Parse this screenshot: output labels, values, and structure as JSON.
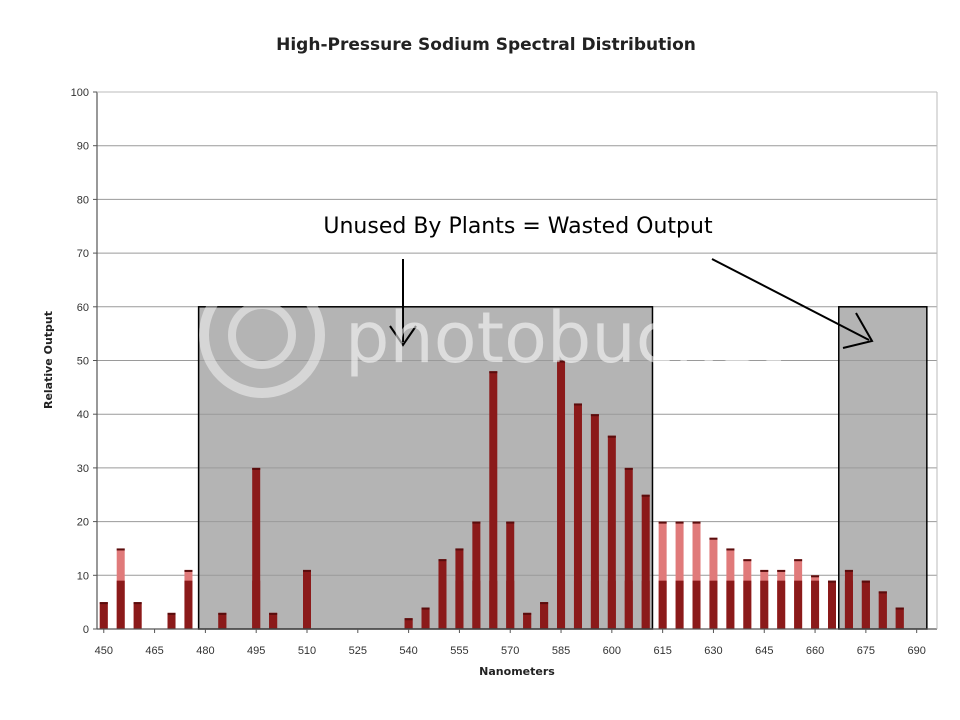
{
  "chart_data": {
    "type": "bar",
    "title": "High-Pressure Sodium Spectral Distribution",
    "xlabel": "Nanometers",
    "ylabel": "Relative Output",
    "ylim": [
      0,
      100
    ],
    "yticks": [
      0,
      10,
      20,
      30,
      40,
      50,
      60,
      70,
      80,
      90,
      100
    ],
    "xticks": [
      450,
      465,
      480,
      495,
      510,
      525,
      540,
      555,
      570,
      585,
      600,
      615,
      630,
      645,
      660,
      675,
      690
    ],
    "grid": true,
    "x": [
      450,
      455,
      460,
      465,
      470,
      475,
      480,
      485,
      490,
      495,
      500,
      505,
      510,
      515,
      520,
      525,
      530,
      535,
      540,
      545,
      550,
      555,
      560,
      565,
      570,
      575,
      580,
      585,
      590,
      595,
      600,
      605,
      610,
      615,
      620,
      625,
      630,
      635,
      640,
      645,
      650,
      655,
      660,
      665,
      670,
      675,
      680,
      685,
      690
    ],
    "values": [
      5,
      15,
      5,
      0,
      3,
      11,
      0,
      3,
      0,
      30,
      3,
      0,
      11,
      0,
      0,
      0,
      0,
      0,
      2,
      4,
      13,
      15,
      20,
      48,
      20,
      3,
      5,
      50,
      42,
      40,
      36,
      30,
      25,
      20,
      20,
      20,
      17,
      15,
      13,
      11,
      11,
      13,
      10,
      9,
      11,
      9,
      7,
      4,
      0
    ],
    "colors": {
      "bar_dark": "#8b1a1a",
      "bar_light": "#e07a7a",
      "shade": "#b4b4b4",
      "grid": "#9a9a9a"
    },
    "annotation": {
      "text": "Unused By Plants = Wasted Output",
      "regions": [
        {
          "x_start": 478,
          "x_end": 612,
          "y_top": 60
        },
        {
          "x_start": 667,
          "x_end": 693,
          "y_top": 60
        }
      ]
    },
    "watermark": "photobucket"
  }
}
